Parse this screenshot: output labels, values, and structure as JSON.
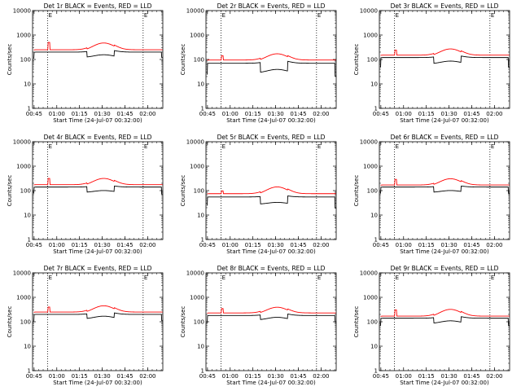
{
  "chart_data": [
    {
      "type": "line",
      "title": "Det 1r BLACK = Events, RED = LLD",
      "ylabel": "Counts/sec",
      "xlabel": "Start Time (24-Jul-07 00:32:00)",
      "y_scale": "log",
      "ylim": [
        1,
        10000
      ],
      "y_ticks": [
        "1",
        "10",
        "100",
        "1000",
        "10000"
      ],
      "x_ticks": [
        "00:45",
        "01:00",
        "01:15",
        "01:30",
        "01:45",
        "02:00"
      ],
      "marker_labels": [
        "E",
        "E"
      ],
      "series": [
        {
          "color": "#000000",
          "base": 200,
          "dip": 0.6,
          "bump": 1.3,
          "start_drop": 0.55,
          "end_drop": 0.6
        },
        {
          "color": "#ff0000",
          "base": 250,
          "dip": 0.9,
          "bump": 2.1,
          "spike": 2
        }
      ]
    },
    {
      "type": "line",
      "title": "Det 2r BLACK = Events, RED = LLD",
      "ylabel": "Counts/sec",
      "xlabel": "Start Time (24-Jul-07 00:32:00)",
      "y_scale": "log",
      "ylim": [
        1,
        10000
      ],
      "y_ticks": [
        "1",
        "10",
        "100",
        "1000",
        "10000"
      ],
      "x_ticks": [
        "00:45",
        "01:00",
        "01:15",
        "01:30",
        "01:45",
        "02:00"
      ],
      "marker_labels": [
        "E",
        "E"
      ],
      "series": [
        {
          "color": "#000000",
          "base": 70,
          "dip": 0.4,
          "bump": 1.4,
          "start_drop": 0.35,
          "end_drop": 0.3
        },
        {
          "color": "#ff0000",
          "base": 95,
          "dip": 0.9,
          "bump": 2.0,
          "spike": 1.5
        }
      ]
    },
    {
      "type": "line",
      "title": "Det 3r BLACK = Events, RED = LLD",
      "ylabel": "Counts/sec",
      "xlabel": "Start Time (24-Jul-07 00:32:00)",
      "y_scale": "log",
      "ylim": [
        1,
        10000
      ],
      "y_ticks": [
        "1",
        "10",
        "100",
        "1000",
        "10000"
      ],
      "x_ticks": [
        "00:45",
        "01:00",
        "01:15",
        "01:30",
        "01:45",
        "02:00"
      ],
      "marker_labels": [
        "E",
        "E"
      ],
      "series": [
        {
          "color": "#000000",
          "base": 120,
          "dip": 0.55,
          "bump": 1.3,
          "start_drop": 0.4,
          "end_drop": 0.4
        },
        {
          "color": "#ff0000",
          "base": 150,
          "dip": 0.9,
          "bump": 2.0,
          "spike": 1.6
        }
      ]
    },
    {
      "type": "line",
      "title": "Det 4r BLACK = Events, RED = LLD",
      "ylabel": "Counts/sec",
      "xlabel": "Start Time (24-Jul-07 00:32:00)",
      "y_scale": "log",
      "ylim": [
        1,
        10000
      ],
      "y_ticks": [
        "1",
        "10",
        "100",
        "1000",
        "10000"
      ],
      "x_ticks": [
        "00:45",
        "01:00",
        "01:15",
        "01:30",
        "01:45",
        "02:00"
      ],
      "marker_labels": [
        "E",
        "E"
      ],
      "series": [
        {
          "color": "#000000",
          "base": 140,
          "dip": 0.6,
          "bump": 1.2,
          "start_drop": 0.55,
          "end_drop": 0.5
        },
        {
          "color": "#ff0000",
          "base": 175,
          "dip": 0.9,
          "bump": 2.0,
          "spike": 1.8
        }
      ]
    },
    {
      "type": "line",
      "title": "Det 5r BLACK = Events, RED = LLD",
      "ylabel": "Counts/sec",
      "xlabel": "Start Time (24-Jul-07 00:32:00)",
      "y_scale": "log",
      "ylim": [
        1,
        10000
      ],
      "y_ticks": [
        "1",
        "10",
        "100",
        "1000",
        "10000"
      ],
      "x_ticks": [
        "00:45",
        "01:00",
        "01:15",
        "01:30",
        "01:45",
        "02:00"
      ],
      "marker_labels": [
        "E",
        "E"
      ],
      "series": [
        {
          "color": "#000000",
          "base": 55,
          "dip": 0.5,
          "bump": 1.2,
          "start_drop": 0.45,
          "end_drop": 0.35
        },
        {
          "color": "#ff0000",
          "base": 75,
          "dip": 0.9,
          "bump": 2.1,
          "spike": 1.3
        }
      ]
    },
    {
      "type": "line",
      "title": "Det 6r BLACK = Events, RED = LLD",
      "ylabel": "Counts/sec",
      "xlabel": "Start Time (24-Jul-07 00:32:00)",
      "y_scale": "log",
      "ylim": [
        1,
        10000
      ],
      "y_ticks": [
        "1",
        "10",
        "100",
        "1000",
        "10000"
      ],
      "x_ticks": [
        "00:45",
        "01:00",
        "01:15",
        "01:30",
        "01:45",
        "02:00"
      ],
      "marker_labels": [
        "E",
        "E"
      ],
      "series": [
        {
          "color": "#000000",
          "base": 140,
          "dip": 0.6,
          "bump": 1.2,
          "start_drop": 0.55,
          "end_drop": 0.55
        },
        {
          "color": "#ff0000",
          "base": 170,
          "dip": 0.9,
          "bump": 2.0,
          "spike": 1.7
        }
      ]
    },
    {
      "type": "line",
      "title": "Det 7r BLACK = Events, RED = LLD",
      "ylabel": "Counts/sec",
      "xlabel": "Start Time (24-Jul-07 00:32:00)",
      "y_scale": "log",
      "ylim": [
        1,
        10000
      ],
      "y_ticks": [
        "1",
        "10",
        "100",
        "1000",
        "10000"
      ],
      "x_ticks": [
        "00:45",
        "01:00",
        "01:15",
        "01:30",
        "01:45",
        "02:00"
      ],
      "marker_labels": [
        "E",
        "E"
      ],
      "series": [
        {
          "color": "#000000",
          "base": 200,
          "dip": 0.65,
          "bump": 1.3,
          "start_drop": 0.5,
          "end_drop": 0.55
        },
        {
          "color": "#ff0000",
          "base": 250,
          "dip": 0.9,
          "bump": 2.0,
          "spike": 1.6
        }
      ]
    },
    {
      "type": "line",
      "title": "Det 8r BLACK = Events, RED = LLD",
      "ylabel": "Counts/sec",
      "xlabel": "Start Time (24-Jul-07 00:32:00)",
      "y_scale": "log",
      "ylim": [
        1,
        10000
      ],
      "y_ticks": [
        "1",
        "10",
        "100",
        "1000",
        "10000"
      ],
      "x_ticks": [
        "00:45",
        "01:00",
        "01:15",
        "01:30",
        "01:45",
        "02:00"
      ],
      "marker_labels": [
        "E",
        "E"
      ],
      "series": [
        {
          "color": "#000000",
          "base": 180,
          "dip": 0.65,
          "bump": 1.3,
          "start_drop": 0.5,
          "end_drop": 0.55
        },
        {
          "color": "#ff0000",
          "base": 230,
          "dip": 0.9,
          "bump": 1.9,
          "spike": 1.5
        }
      ]
    },
    {
      "type": "line",
      "title": "Det 9r BLACK = Events, RED = LLD",
      "ylabel": "Counts/sec",
      "xlabel": "Start Time (24-Jul-07 00:32:00)",
      "y_scale": "log",
      "ylim": [
        1,
        10000
      ],
      "y_ticks": [
        "1",
        "10",
        "100",
        "1000",
        "10000"
      ],
      "x_ticks": [
        "00:45",
        "01:00",
        "01:15",
        "01:30",
        "01:45",
        "02:00"
      ],
      "marker_labels": [
        "E",
        "E"
      ],
      "series": [
        {
          "color": "#000000",
          "base": 140,
          "dip": 0.6,
          "bump": 1.3,
          "start_drop": 0.5,
          "end_drop": 0.5
        },
        {
          "color": "#ff0000",
          "base": 170,
          "dip": 0.9,
          "bump": 2.1,
          "spike": 1.8
        }
      ]
    }
  ]
}
